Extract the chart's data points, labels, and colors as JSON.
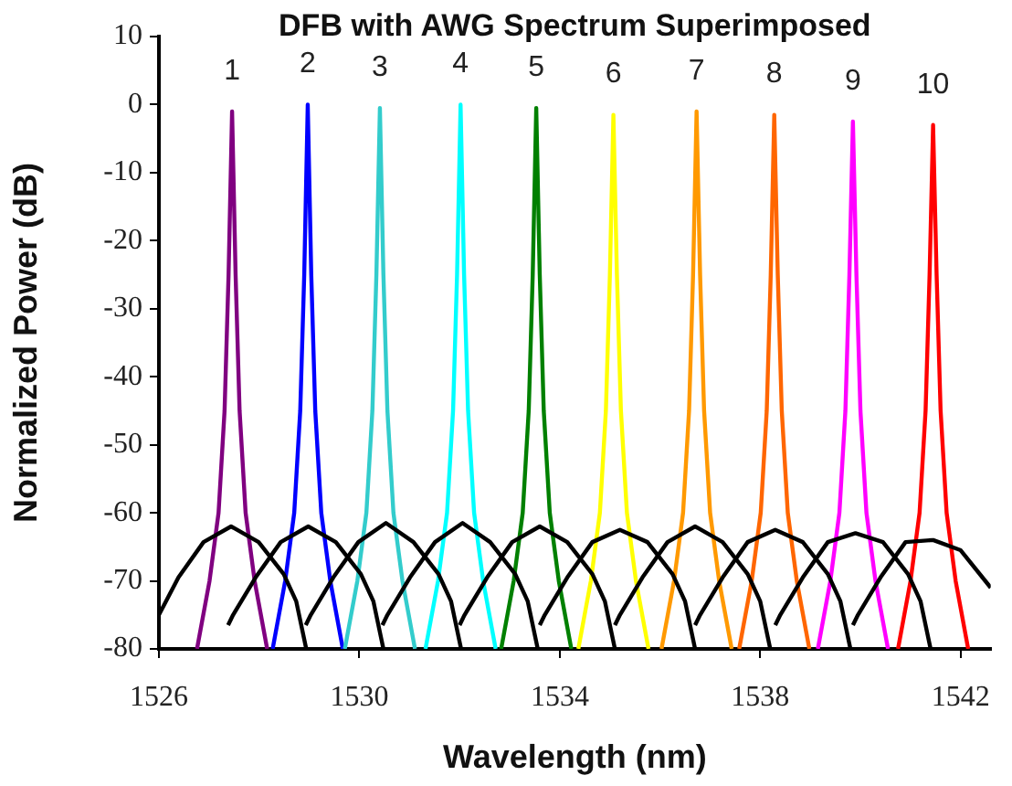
{
  "chart_data": {
    "type": "line",
    "title": "DFB with AWG Spectrum Superimposed",
    "xlabel": "Wavelength (nm)",
    "ylabel": "Normalized Power (dB)",
    "xlim": [
      1526,
      1542.6
    ],
    "xticks": [
      1526,
      1530,
      1534,
      1538,
      1542
    ],
    "ylim": [
      -80,
      10
    ],
    "yticks": [
      -80,
      -70,
      -60,
      -50,
      -40,
      -30,
      -20,
      -10,
      0,
      10
    ],
    "grid": false,
    "legend": false,
    "marker": "none",
    "line_style": "solid",
    "series": [
      {
        "name": "1",
        "color": "#800080",
        "x": [
          1526.76,
          1527.01,
          1527.19,
          1527.31,
          1527.39,
          1527.46,
          1527.53,
          1527.61,
          1527.73,
          1527.91,
          1528.16
        ],
        "values": [
          -80,
          -70,
          -60,
          -45,
          -25,
          -1,
          -25,
          -45,
          -60,
          -70,
          -80
        ]
      },
      {
        "name": "2",
        "color": "#0000ff",
        "x": [
          1528.27,
          1528.52,
          1528.7,
          1528.82,
          1528.9,
          1528.97,
          1529.04,
          1529.12,
          1529.24,
          1529.42,
          1529.67
        ],
        "values": [
          -80,
          -70,
          -60,
          -45,
          -25,
          0,
          -25,
          -45,
          -60,
          -70,
          -80
        ]
      },
      {
        "name": "3",
        "color": "#33cccc",
        "x": [
          1529.71,
          1529.96,
          1530.14,
          1530.26,
          1530.34,
          1530.41,
          1530.48,
          1530.56,
          1530.68,
          1530.86,
          1531.11
        ],
        "values": [
          -80,
          -70,
          -60,
          -45,
          -25,
          -0.5,
          -25,
          -45,
          -60,
          -70,
          -80
        ]
      },
      {
        "name": "4",
        "color": "#00ffff",
        "x": [
          1531.32,
          1531.57,
          1531.75,
          1531.87,
          1531.95,
          1532.02,
          1532.09,
          1532.17,
          1532.29,
          1532.47,
          1532.72
        ],
        "values": [
          -80,
          -70,
          -60,
          -45,
          -25,
          0,
          -25,
          -45,
          -60,
          -70,
          -80
        ]
      },
      {
        "name": "5",
        "color": "#008000",
        "x": [
          1532.83,
          1533.08,
          1533.26,
          1533.38,
          1533.46,
          1533.53,
          1533.6,
          1533.68,
          1533.8,
          1533.98,
          1534.23
        ],
        "values": [
          -80,
          -70,
          -60,
          -45,
          -25,
          -0.5,
          -25,
          -45,
          -60,
          -70,
          -80
        ]
      },
      {
        "name": "6",
        "color": "#ffff00",
        "x": [
          1534.37,
          1534.62,
          1534.8,
          1534.92,
          1535.0,
          1535.07,
          1535.14,
          1535.22,
          1535.34,
          1535.52,
          1535.77
        ],
        "values": [
          -80,
          -70,
          -60,
          -45,
          -25,
          -1.5,
          -25,
          -45,
          -60,
          -70,
          -80
        ]
      },
      {
        "name": "7",
        "color": "#ff9900",
        "x": [
          1536.03,
          1536.28,
          1536.46,
          1536.58,
          1536.66,
          1536.73,
          1536.8,
          1536.88,
          1537.0,
          1537.18,
          1537.43
        ],
        "values": [
          -80,
          -70,
          -60,
          -45,
          -25,
          -1,
          -25,
          -45,
          -60,
          -70,
          -80
        ]
      },
      {
        "name": "8",
        "color": "#ff6600",
        "x": [
          1537.58,
          1537.83,
          1538.01,
          1538.13,
          1538.21,
          1538.28,
          1538.35,
          1538.43,
          1538.55,
          1538.73,
          1538.98
        ],
        "values": [
          -80,
          -70,
          -60,
          -45,
          -25,
          -1.5,
          -25,
          -45,
          -60,
          -70,
          -80
        ]
      },
      {
        "name": "9",
        "color": "#ff00ff",
        "x": [
          1539.15,
          1539.4,
          1539.58,
          1539.7,
          1539.78,
          1539.85,
          1539.92,
          1540.0,
          1540.12,
          1540.3,
          1540.55
        ],
        "values": [
          -80,
          -70,
          -60,
          -45,
          -25,
          -2.5,
          -25,
          -45,
          -60,
          -70,
          -80
        ]
      },
      {
        "name": "10",
        "color": "#ff0000",
        "x": [
          1540.75,
          1541.0,
          1541.18,
          1541.3,
          1541.38,
          1541.45,
          1541.52,
          1541.6,
          1541.72,
          1541.9,
          1542.15
        ],
        "values": [
          -80,
          -70,
          -60,
          -45,
          -25,
          -3,
          -25,
          -45,
          -60,
          -70,
          -80
        ]
      },
      {
        "color": "#000000",
        "x": [
          1526.0,
          1526.39,
          1526.89,
          1527.44,
          1527.99,
          1528.49,
          1528.74,
          1528.94
        ],
        "values": [
          -75,
          -69.5,
          -64.3,
          -62,
          -64.3,
          -69,
          -73,
          -80
        ]
      },
      {
        "color": "#000000",
        "x": [
          1527.38,
          1527.48,
          1527.93,
          1528.43,
          1528.98,
          1529.53,
          1530.03,
          1530.28,
          1530.48
        ],
        "values": [
          -76.5,
          -75,
          -69.5,
          -64.3,
          -62,
          -64.3,
          -69,
          -73,
          -80
        ]
      },
      {
        "color": "#000000",
        "x": [
          1528.93,
          1529.03,
          1529.48,
          1529.98,
          1530.53,
          1531.08,
          1531.58,
          1531.83,
          1532.03
        ],
        "values": [
          -76.5,
          -75,
          -69.5,
          -64.3,
          -61.5,
          -64.3,
          -69,
          -73,
          -80
        ]
      },
      {
        "color": "#000000",
        "x": [
          1530.46,
          1530.56,
          1531.01,
          1531.51,
          1532.06,
          1532.61,
          1533.11,
          1533.36,
          1533.56
        ],
        "values": [
          -76.5,
          -75,
          -69.5,
          -64.3,
          -61.5,
          -64.3,
          -69,
          -73,
          -80
        ]
      },
      {
        "color": "#000000",
        "x": [
          1532.0,
          1532.1,
          1532.55,
          1533.05,
          1533.6,
          1534.15,
          1534.65,
          1534.9,
          1535.1
        ],
        "values": [
          -76.5,
          -75,
          -69.5,
          -64.3,
          -62,
          -64.3,
          -69,
          -73,
          -80
        ]
      },
      {
        "color": "#000000",
        "x": [
          1533.6,
          1533.7,
          1534.15,
          1534.65,
          1535.2,
          1535.75,
          1536.25,
          1536.5,
          1536.7
        ],
        "values": [
          -76.5,
          -75,
          -69.5,
          -64.3,
          -62.5,
          -64.3,
          -69,
          -73,
          -80
        ]
      },
      {
        "color": "#000000",
        "x": [
          1535.1,
          1535.2,
          1535.65,
          1536.15,
          1536.7,
          1537.25,
          1537.75,
          1538.0,
          1538.2
        ],
        "values": [
          -76.5,
          -75,
          -69.5,
          -64.3,
          -62,
          -64.3,
          -69,
          -73,
          -80
        ]
      },
      {
        "color": "#000000",
        "x": [
          1536.7,
          1536.8,
          1537.25,
          1537.75,
          1538.3,
          1538.85,
          1539.35,
          1539.6,
          1539.8
        ],
        "values": [
          -76.5,
          -75,
          -69.5,
          -64.3,
          -62.5,
          -64.3,
          -69,
          -73,
          -80
        ]
      },
      {
        "color": "#000000",
        "x": [
          1538.3,
          1538.4,
          1538.85,
          1539.35,
          1539.9,
          1540.45,
          1540.95,
          1541.2,
          1541.4
        ],
        "values": [
          -76.5,
          -75,
          -69.5,
          -64.3,
          -63,
          -64.3,
          -69,
          -73,
          -80
        ]
      },
      {
        "color": "#000000",
        "x": [
          1539.85,
          1539.95,
          1540.4,
          1540.9,
          1541.45,
          1542.0,
          1542.6
        ],
        "values": [
          -76.5,
          -75,
          -69.5,
          -64.3,
          -64,
          -65.5,
          -71
        ]
      }
    ]
  }
}
